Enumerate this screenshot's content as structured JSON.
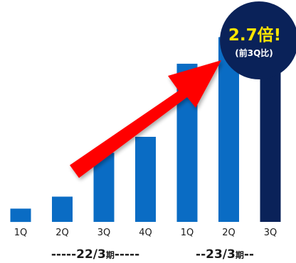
{
  "chart_data": {
    "type": "bar",
    "categories": [
      "1Q",
      "2Q",
      "3Q",
      "4Q",
      "1Q",
      "2Q",
      "3Q"
    ],
    "values": [
      1.0,
      1.9,
      5.2,
      6.4,
      11.9,
      13.9,
      14.3
    ],
    "ylim": [
      0,
      16
    ],
    "grid": false,
    "legend": "none",
    "periods": [
      {
        "label_prefix": "-----22/3",
        "label_kanji": "期",
        "label_suffix": "-----"
      },
      {
        "label_prefix": "--23/3",
        "label_kanji": "期",
        "label_suffix": "--"
      }
    ],
    "annotation": {
      "main": "2.7倍!",
      "sub": "(前3Q比)"
    },
    "colors": {
      "bar": "#0a6cc4",
      "bar_highlight": "#0a2259",
      "arrow": "#ff0000",
      "badge_bg": "#0a2259",
      "badge_main_text": "#ffe500",
      "badge_sub_text": "#ffffff"
    }
  }
}
